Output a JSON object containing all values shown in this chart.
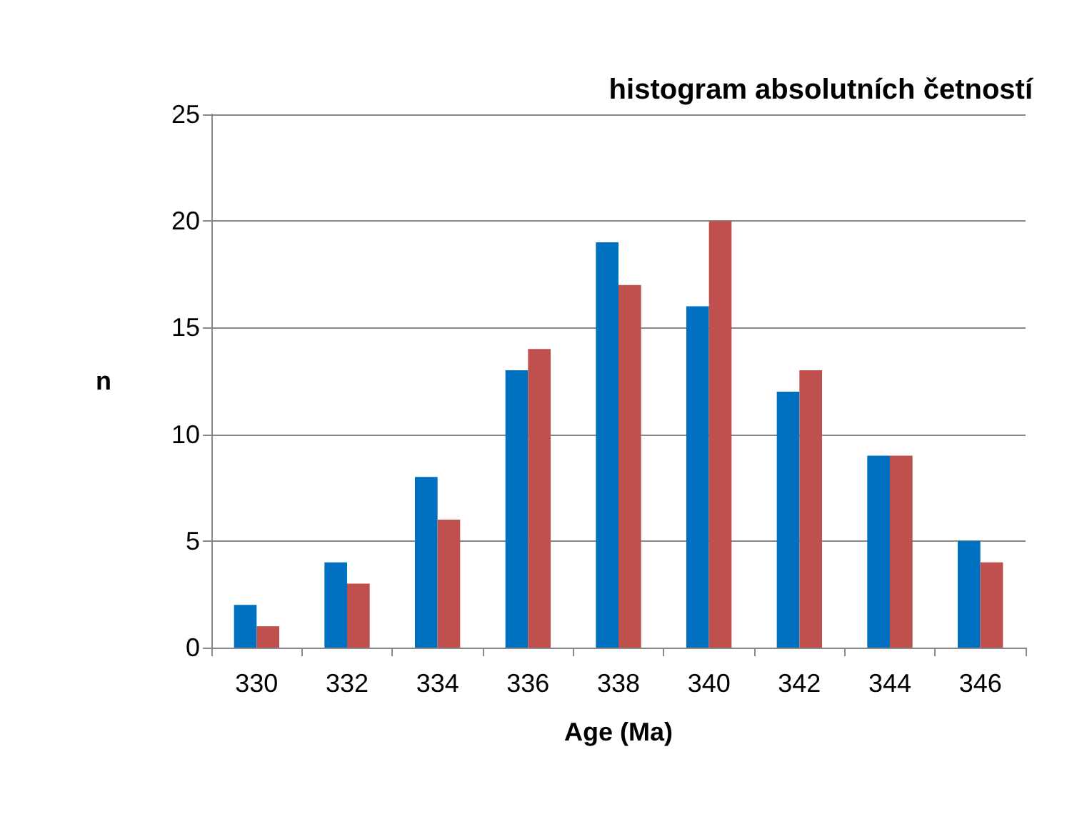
{
  "chart_data": {
    "type": "bar",
    "title": "histogram absolutních četností",
    "xlabel": "Age (Ma)",
    "ylabel": "n",
    "categories": [
      "330",
      "332",
      "334",
      "336",
      "338",
      "340",
      "342",
      "344",
      "346"
    ],
    "series": [
      {
        "color": "#0070c0",
        "values": [
          2,
          4,
          8,
          13,
          19,
          16,
          12,
          9,
          5
        ]
      },
      {
        "color": "#c0504d",
        "values": [
          1,
          3,
          6,
          14,
          17,
          20,
          13,
          9,
          4
        ]
      }
    ],
    "ylim": [
      0,
      25
    ],
    "yticks": [
      0,
      5,
      10,
      15,
      20,
      25
    ],
    "grid": "y"
  }
}
